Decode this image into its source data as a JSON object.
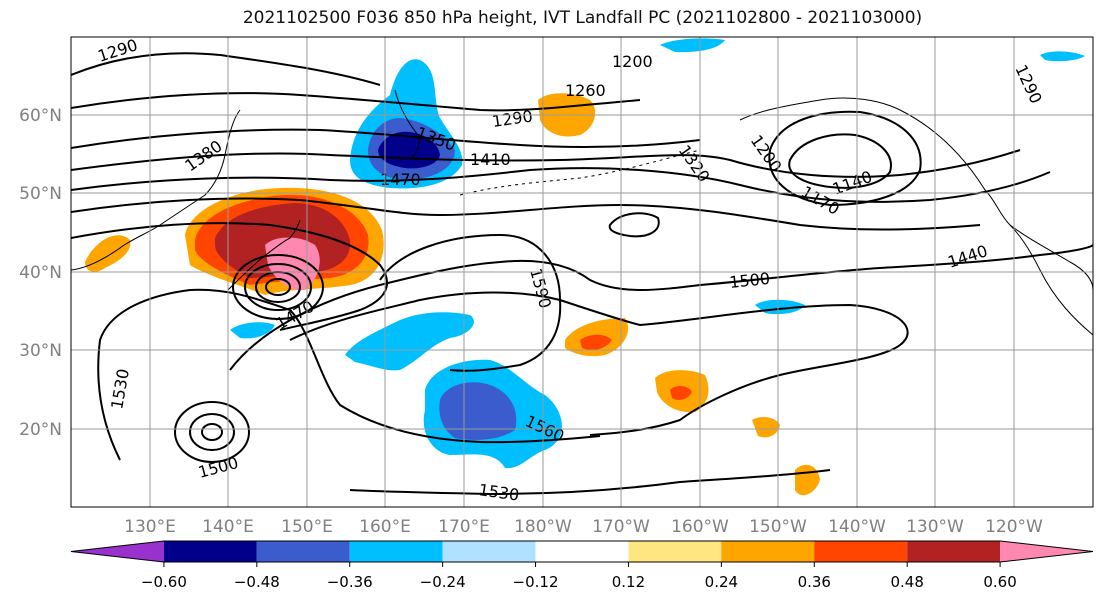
{
  "title": "2021102500 F036 850 hPa height, IVT Landfall PC (2021102800 - 2021103000)",
  "lat_labels": [
    "60°N",
    "50°N",
    "40°N",
    "30°N",
    "20°N"
  ],
  "lon_labels": [
    "130°E",
    "140°E",
    "150°E",
    "160°E",
    "170°E",
    "180°W",
    "170°W",
    "160°W",
    "150°W",
    "140°W",
    "130°W",
    "120°W"
  ],
  "contour_labels": [
    "1290",
    "1290",
    "1260",
    "1200",
    "1290",
    "1350",
    "1410",
    "1470",
    "1380",
    "1320",
    "1200",
    "1170",
    "1140",
    "1440",
    "1500",
    "1590",
    "1470",
    "1530",
    "1500",
    "1560",
    "1530"
  ],
  "colorbar": {
    "colors": [
      "#9932cc",
      "#00008b",
      "#3a5ccc",
      "#00bfff",
      "#b0e2ff",
      "#ffffff",
      "#ffe680",
      "#ffa500",
      "#ff4500",
      "#b22222",
      "#ff88b0"
    ],
    "tick_labels": [
      "−0.60",
      "−0.48",
      "−0.36",
      "−0.24",
      "−0.12",
      "0.12",
      "0.24",
      "0.36",
      "0.48",
      "0.60"
    ]
  },
  "axis_label_color": "#808080",
  "contour_color": "#000000"
}
